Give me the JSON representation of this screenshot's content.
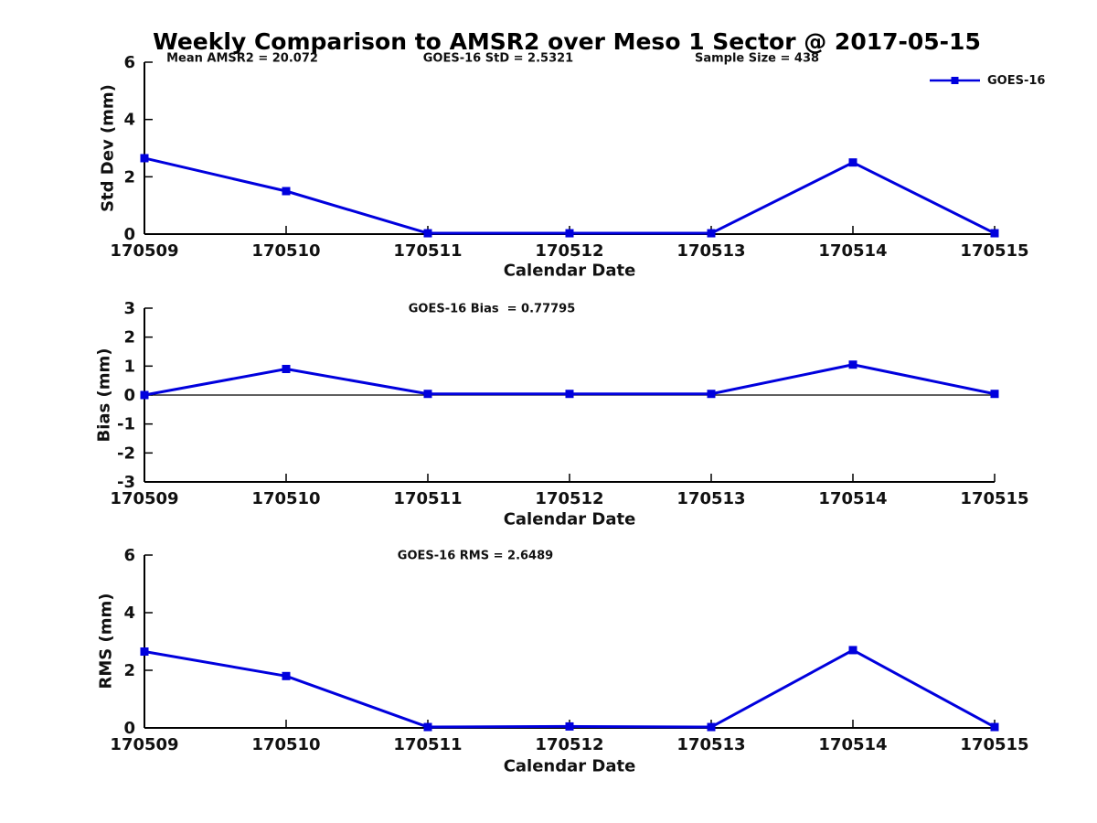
{
  "title": "Weekly Comparison to AMSR2 over Meso 1 Sector @ 2017-05-15",
  "colors": {
    "series": "#0000dd",
    "axis": "#000000",
    "text": "#111111"
  },
  "legend": {
    "label": "GOES-16"
  },
  "chart_data": [
    {
      "type": "line",
      "name": "std-dev-panel",
      "categories": [
        "170509",
        "170510",
        "170511",
        "170512",
        "170513",
        "170514",
        "170515"
      ],
      "series": [
        {
          "name": "GOES-16",
          "values": [
            2.65,
            1.5,
            0.03,
            0.03,
            0.03,
            2.5,
            0.03
          ]
        }
      ],
      "title": "",
      "xlabel": "Calendar Date",
      "ylabel": "Std Dev (mm)",
      "ylim": [
        0,
        6
      ],
      "yticks": [
        0,
        2,
        4,
        6
      ],
      "grid": false,
      "legend_position": "top-right",
      "zero_line": false,
      "annotations": [
        "Mean AMSR2 = 20.072",
        "GOES-16 StD = 2.5321",
        "Sample Size = 438"
      ]
    },
    {
      "type": "line",
      "name": "bias-panel",
      "categories": [
        "170509",
        "170510",
        "170511",
        "170512",
        "170513",
        "170514",
        "170515"
      ],
      "series": [
        {
          "name": "GOES-16",
          "values": [
            0.0,
            0.9,
            0.04,
            0.04,
            0.04,
            1.05,
            0.04
          ]
        }
      ],
      "title": "",
      "xlabel": "Calendar Date",
      "ylabel": "Bias (mm)",
      "ylim": [
        -3,
        3
      ],
      "yticks": [
        3,
        2,
        1,
        0,
        -1,
        -2,
        -3
      ],
      "grid": false,
      "legend_position": "none",
      "zero_line": true,
      "annotations": [
        "GOES-16 Bias  = 0.77795"
      ]
    },
    {
      "type": "line",
      "name": "rms-panel",
      "categories": [
        "170509",
        "170510",
        "170511",
        "170512",
        "170513",
        "170514",
        "170515"
      ],
      "series": [
        {
          "name": "GOES-16",
          "values": [
            2.65,
            1.8,
            0.03,
            0.05,
            0.03,
            2.7,
            0.03
          ]
        }
      ],
      "title": "",
      "xlabel": "Calendar Date",
      "ylabel": "RMS (mm)",
      "ylim": [
        0,
        6
      ],
      "yticks": [
        0,
        2,
        4,
        6
      ],
      "grid": false,
      "legend_position": "none",
      "zero_line": false,
      "annotations": [
        "GOES-16 RMS = 2.6489"
      ]
    }
  ]
}
